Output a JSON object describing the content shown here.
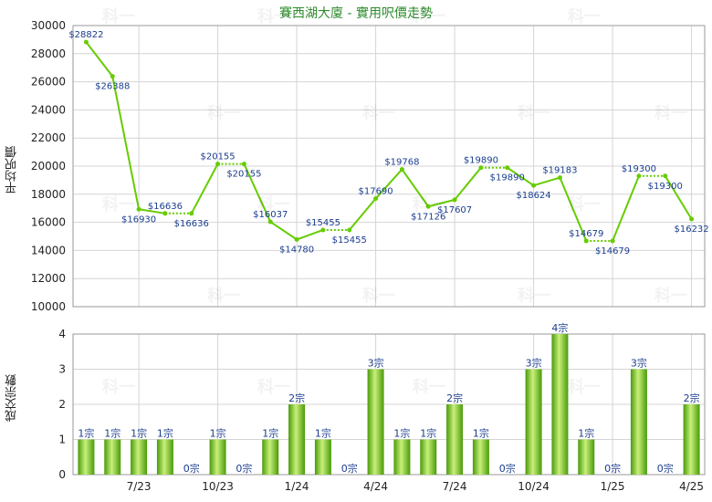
{
  "chart_data": [
    {
      "type": "line",
      "title": "賽西湖大廈 - 實用呎價走勢",
      "ylabel": "平均呎價",
      "ylim": [
        10000,
        30000
      ],
      "yticks": [
        10000,
        12000,
        14000,
        16000,
        18000,
        20000,
        22000,
        24000,
        26000,
        28000,
        30000
      ],
      "grid": true,
      "series": [
        {
          "points": [
            {
              "i": 0,
              "v": 28822,
              "label": "$28822"
            },
            {
              "i": 1,
              "v": 26388,
              "label": "$26388"
            },
            {
              "i": 2,
              "v": 16930,
              "label": "$16930"
            },
            {
              "i": 3,
              "v": 16636,
              "label": "$16636"
            },
            {
              "i": 4,
              "v": 16636,
              "label": "$16636"
            },
            {
              "i": 5,
              "v": 20155,
              "label": "$20155"
            },
            {
              "i": 6,
              "v": 20155,
              "label": "$20155"
            },
            {
              "i": 7,
              "v": 16037,
              "label": "$16037"
            },
            {
              "i": 8,
              "v": 14780,
              "label": "$14780"
            },
            {
              "i": 9,
              "v": 15455,
              "label": "$15455"
            },
            {
              "i": 10,
              "v": 15455,
              "label": "$15455"
            },
            {
              "i": 11,
              "v": 17690,
              "label": "$17690"
            },
            {
              "i": 12,
              "v": 19768,
              "label": "$19768"
            },
            {
              "i": 13,
              "v": 17126,
              "label": "$17126"
            },
            {
              "i": 14,
              "v": 17607,
              "label": "$17607"
            },
            {
              "i": 15,
              "v": 19890,
              "label": "$19890"
            },
            {
              "i": 16,
              "v": 19890,
              "label": "$19890"
            },
            {
              "i": 17,
              "v": 18624,
              "label": "$18624"
            },
            {
              "i": 18,
              "v": 19183,
              "label": "$19183"
            },
            {
              "i": 19,
              "v": 14679,
              "label": "$14679"
            },
            {
              "i": 20,
              "v": 14679,
              "label": "$14679"
            },
            {
              "i": 21,
              "v": 19300,
              "label": "$19300"
            },
            {
              "i": 22,
              "v": 19300,
              "label": "$19300"
            },
            {
              "i": 23,
              "v": 16232,
              "label": "$16232"
            }
          ],
          "dotted_segments": [
            [
              3,
              4
            ],
            [
              5,
              6
            ],
            [
              9,
              10
            ],
            [
              15,
              16
            ],
            [
              19,
              20
            ],
            [
              21,
              22
            ]
          ]
        }
      ]
    },
    {
      "type": "bar",
      "ylabel": "成交宗數",
      "ylim": [
        0,
        4
      ],
      "yticks": [
        0,
        1,
        2,
        3,
        4
      ],
      "grid": true,
      "values": [
        1,
        1,
        1,
        1,
        0,
        1,
        0,
        1,
        2,
        1,
        0,
        3,
        1,
        1,
        2,
        1,
        0,
        3,
        4,
        1,
        0,
        3,
        0,
        2
      ],
      "bar_labels": [
        "1宗",
        "1宗",
        "1宗",
        "1宗",
        "0宗",
        "1宗",
        "0宗",
        "1宗",
        "2宗",
        "1宗",
        "0宗",
        "3宗",
        "1宗",
        "1宗",
        "2宗",
        "1宗",
        "0宗",
        "3宗",
        "4宗",
        "1宗",
        "0宗",
        "3宗",
        "0宗",
        "2宗"
      ],
      "xtick_labels": [
        {
          "i": 2.5,
          "label": "7/23"
        },
        {
          "i": 5.5,
          "label": "10/23"
        },
        {
          "i": 8.5,
          "label": "1/24"
        },
        {
          "i": 11.5,
          "label": "4/24"
        },
        {
          "i": 14.5,
          "label": "7/24"
        },
        {
          "i": 17.5,
          "label": "10/24"
        },
        {
          "i": 20.5,
          "label": "1/25"
        },
        {
          "i": 23.5,
          "label": "4/25"
        }
      ]
    }
  ],
  "watermark": "科一",
  "colors": {
    "line": "#66cc00",
    "bar_dark": "#4a9a0a",
    "bar_light": "#c8f07a",
    "label": "#1a3d8f",
    "grid": "#d4d4d4",
    "title": "#2e8b2e"
  }
}
